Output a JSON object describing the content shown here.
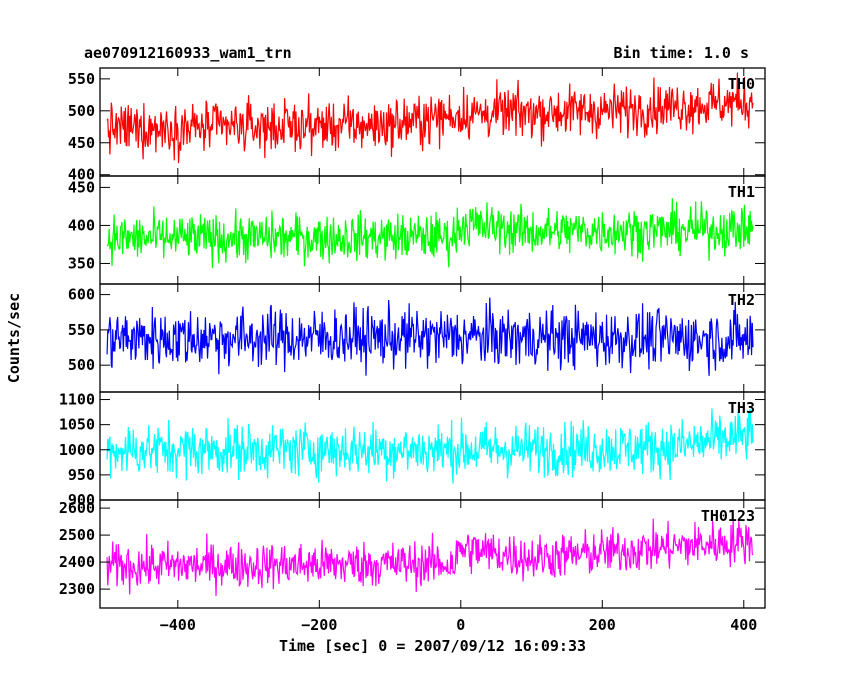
{
  "header": {
    "title": "ae070912160933_wam1_trn",
    "bin_time": "Bin time: 1.0 s"
  },
  "chart_data": {
    "type": "line",
    "title": "ae070912160933_wam1_trn",
    "subtitle": "Bin time: 1.0 s",
    "xlabel": "Time [sec] 0 = 2007/09/12 16:09:33",
    "ylabel": "Counts/sec",
    "xlim": [
      -510,
      430
    ],
    "x_ticks": [
      -400,
      -200,
      0,
      200,
      400
    ],
    "x_tick_labels": [
      "−400",
      "−200",
      "0",
      "200",
      "400"
    ],
    "x_start": -500,
    "x_end": 413,
    "step": 1,
    "grid": false,
    "panels": [
      {
        "name": "TH0",
        "color": "#ff0000",
        "ylim": [
          398,
          567
        ],
        "y_ticks": [
          400,
          450,
          500,
          550
        ],
        "y_tick_labels": [
          "400",
          "450",
          "500",
          "550"
        ],
        "trend": [
          [
            -500,
            472
          ],
          [
            -100,
            478
          ],
          [
            0,
            495
          ],
          [
            200,
            500
          ],
          [
            413,
            515
          ]
        ],
        "noise": 28,
        "step_offset": 0
      },
      {
        "name": "TH1",
        "color": "#00ff00",
        "ylim": [
          323,
          465
        ],
        "y_ticks": [
          350,
          400,
          450
        ],
        "y_tick_labels": [
          "350",
          "400",
          "450"
        ],
        "trend": [
          [
            -500,
            383
          ],
          [
            -10,
            385
          ],
          [
            0,
            402
          ],
          [
            100,
            392
          ],
          [
            413,
            395
          ]
        ],
        "noise": 22,
        "step_offset": 0
      },
      {
        "name": "TH2",
        "color": "#0000ff",
        "ylim": [
          462,
          615
        ],
        "y_ticks": [
          500,
          550,
          600
        ],
        "y_tick_labels": [
          "500",
          "550",
          "600"
        ],
        "trend": [
          [
            -500,
            538
          ],
          [
            0,
            540
          ],
          [
            413,
            537
          ]
        ],
        "noise": 30,
        "step_offset": 0
      },
      {
        "name": "TH3",
        "color": "#00ffff",
        "ylim": [
          900,
          1115
        ],
        "y_ticks": [
          900,
          950,
          1000,
          1050,
          1100
        ],
        "y_tick_labels": [
          "900",
          "950",
          "1000",
          "1050",
          "1100"
        ],
        "trend": [
          [
            -500,
            1000
          ],
          [
            0,
            1000
          ],
          [
            300,
            1005
          ],
          [
            413,
            1030
          ]
        ],
        "noise": 38,
        "step_offset": 0
      },
      {
        "name": "TH0123",
        "color": "#ff00ff",
        "ylim": [
          2230,
          2630
        ],
        "y_ticks": [
          2300,
          2400,
          2500,
          2600
        ],
        "y_tick_labels": [
          "2300",
          "2400",
          "2500",
          "2600"
        ],
        "trend": [
          [
            -500,
            2385
          ],
          [
            -10,
            2395
          ],
          [
            0,
            2450
          ],
          [
            100,
            2415
          ],
          [
            413,
            2480
          ]
        ],
        "noise": 60,
        "step_offset": 0
      }
    ]
  }
}
